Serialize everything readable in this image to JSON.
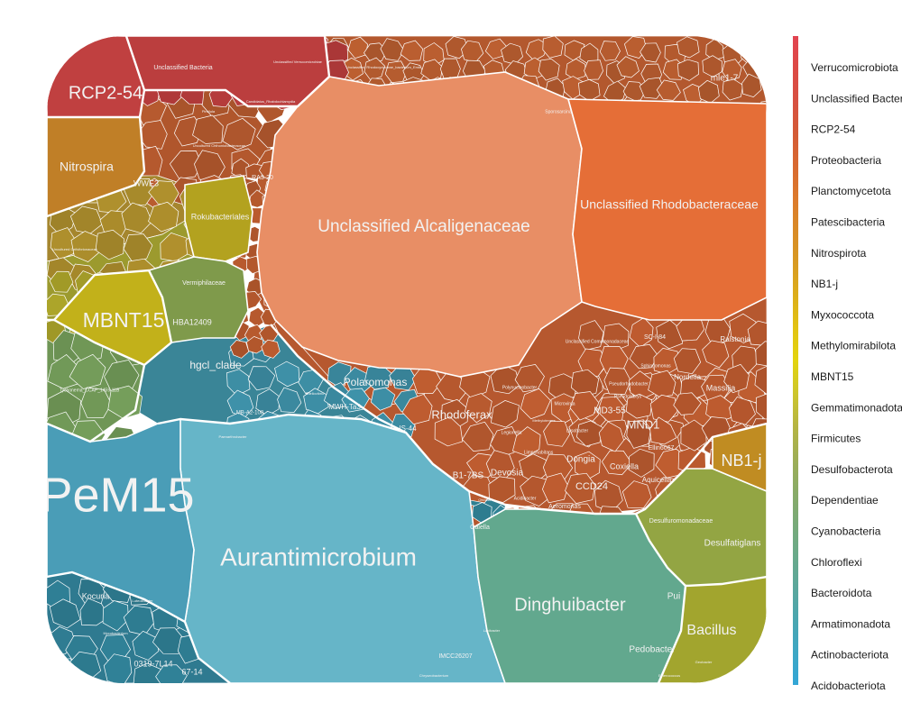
{
  "chart_data": {
    "type": "voronoi-treemap",
    "legend": {
      "placement": "right",
      "entries": [
        {
          "name": "Verrucomicrobiota",
          "color": "#e24451"
        },
        {
          "name": "Unclassified Bacteria",
          "color": "#dc4a45"
        },
        {
          "name": "RCP2-54",
          "color": "#d75142"
        },
        {
          "name": "Proteobacteria",
          "color": "#d45b36"
        },
        {
          "name": "Planctomycetota",
          "color": "#d86930"
        },
        {
          "name": "Patescibacteria",
          "color": "#dc7a2c"
        },
        {
          "name": "Nitrospirota",
          "color": "#d98b26"
        },
        {
          "name": "NB1-j",
          "color": "#d89a22"
        },
        {
          "name": "Myxococcota",
          "color": "#dcae1a"
        },
        {
          "name": "Methylomirabilota",
          "color": "#e2c313"
        },
        {
          "name": "MBNT15",
          "color": "#e3d40e"
        },
        {
          "name": "Gemmatimonadota",
          "color": "#cdc62c"
        },
        {
          "name": "Firmicutes",
          "color": "#b6b542"
        },
        {
          "name": "Desulfobacterota",
          "color": "#9fae55"
        },
        {
          "name": "Dependentiae",
          "color": "#8aab66"
        },
        {
          "name": "Cyanobacteria",
          "color": "#79aa78"
        },
        {
          "name": "Chloroflexi",
          "color": "#6aaa8a"
        },
        {
          "name": "Bacteroidota",
          "color": "#5ba79c"
        },
        {
          "name": "Armatimonadota",
          "color": "#4aa6b0"
        },
        {
          "name": "Actinobacteriota",
          "color": "#3ea7c4"
        },
        {
          "name": "Acidobacteriota",
          "color": "#33a6d6"
        }
      ]
    },
    "regions": [
      {
        "name": "Unclassified Alcaligenaceae",
        "phylum": "Proteobacteria",
        "color": "#e88e65"
      },
      {
        "name": "Unclassified Rhodobacteraceae",
        "phylum": "Proteobacteria",
        "color": "#e56e37"
      },
      {
        "name": "Aurantimicrobium",
        "phylum": "Actinobacteriota",
        "color": "#66b5c8"
      },
      {
        "name": "PeM15",
        "phylum": "Actinobacteriota",
        "color": "#4a9db7"
      },
      {
        "name": "Dinghuibacter",
        "phylum": "Bacteroidota",
        "color": "#62a88e"
      },
      {
        "name": "Bacillus",
        "phylum": "Firmicutes",
        "color": "#a2a52e"
      },
      {
        "name": "Desulfatiglans",
        "phylum": "Desulfobacterota",
        "color": "#93a543"
      },
      {
        "name": "NB1-j",
        "phylum": "NB1-j",
        "color": "#c08c22"
      },
      {
        "name": "MBNT15",
        "phylum": "MBNT15",
        "color": "#c2b11a"
      },
      {
        "name": "RCP2-54",
        "phylum": "RCP2-54",
        "color": "#c04040"
      },
      {
        "name": "Unclassified Bacteria",
        "phylum": "Unclassified Bacteria",
        "color": "#bb3e3e"
      },
      {
        "name": "Nitrospira",
        "phylum": "Nitrospirota",
        "color": "#c07f27"
      },
      {
        "name": "Rokubacteriales",
        "phylum": "Methylomirabilota",
        "color": "#b3a21f"
      },
      {
        "name": "Vermiphilaceae",
        "phylum": "Dependentiae",
        "color": "#7f9a4b"
      },
      {
        "name": "hgcl_clade",
        "phylum": "Actinobacteriota",
        "color": "#3a8597"
      },
      {
        "name": "Polaromonas",
        "phylum": "Proteobacteria",
        "color": "#b6582f"
      },
      {
        "name": "Rhodoferax",
        "phylum": "Proteobacteria",
        "color": "#b6582f"
      },
      {
        "name": "Unclassified Comamonadaceae",
        "phylum": "Proteobacteria",
        "color": "#b6582f"
      },
      {
        "name": "Unclassified Rhodocyclaceae_bacterium_Emb",
        "phylum": "Proteobacteria",
        "color": "#b3582e"
      }
    ],
    "cell_labels": [
      "Unclassified Alcaligenaceae",
      "Unclassified Rhodobacteraceae",
      "Aurantimicrobium",
      "PeM15",
      "Dinghuibacter",
      "Bacillus",
      "Desulfatiglans",
      "Desulfuromonadaceae",
      "NB1-j",
      "MBNT15",
      "RCP2-54",
      "Nitrospira",
      "Unclassified Bacteria",
      "Rokubacteriales",
      "Vermiphilaceae",
      "hgcl_clade",
      "Polaromonas",
      "Rhodoferax",
      "Dongia",
      "Coxiella",
      "Devosia",
      "B1-7BS",
      "CCD24",
      "MND1",
      "MD3-55",
      "Massilia",
      "Nordella",
      "Ralstonia",
      "Aquicella",
      "Ellin6067",
      "Pedobacter",
      "mle1-7",
      "Kocuria",
      "0319-7L14",
      "67-14",
      "MWH-Ta3",
      "IS-44",
      "SC-I-84",
      "Aeromonas",
      "WWE3",
      "HBA12409",
      "RA3-20",
      "MB-A2-108",
      "Pui",
      "IMCC26207",
      "Unclassified Comamonadaceae",
      "Unclassified Rhodocyclaceae_bacterium_Emb",
      "Unclassified Verrucomicrobiae",
      "Candidatus_Rhabdochlamydia",
      "Pirellula",
      "Uncultured Chthoniobacteraceae",
      "Sporosarcina",
      "Polynucleobacter",
      "Pseudorhodobacter",
      "Limnohabitans",
      "Lysobacter",
      "Legionella",
      "Acidibacter",
      "Methylotenera",
      "Sphingomonas",
      "Mycobacterium",
      "Ottowia",
      "Tychonema_CCAP_1459-11B",
      "Microvirga",
      "Pseudolabrys",
      "Luteolibacter",
      "Lacibacter",
      "Chryseobacterium",
      "Gaiella",
      "Uncultured Cellvibrionaceae",
      "Paenarthrobacter",
      "Bdellovibrio",
      "Geobacter",
      "Enterococcus"
    ]
  }
}
